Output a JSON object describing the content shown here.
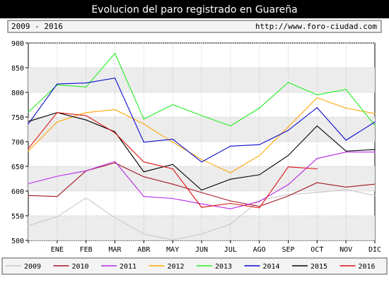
{
  "header": {
    "title": "Evolucion del paro registrado en Guareña",
    "range": "2009 - 2016",
    "url": "http://www.foro-ciudad.com"
  },
  "chart_data": {
    "type": "line",
    "title": "Evolucion del paro registrado en Guareña",
    "xlabel": "",
    "ylabel": "",
    "categories": [
      "",
      "ENE",
      "FEB",
      "MAR",
      "ABR",
      "MAY",
      "JUN",
      "JUL",
      "AGO",
      "SEP",
      "OCT",
      "NOV",
      "DIC"
    ],
    "ylim": [
      500,
      900
    ],
    "yticks": [
      500,
      550,
      600,
      650,
      700,
      750,
      800,
      850,
      900
    ],
    "grid": true,
    "legend_position": "bottom",
    "series": [
      {
        "name": "2009",
        "color": "#c8c8c8",
        "values": [
          530,
          548,
          586,
          546,
          513,
          501,
          513,
          533,
          581,
          593,
          597,
          603,
          591
        ]
      },
      {
        "name": "2010",
        "color": "#a0171e",
        "values": [
          591,
          589,
          641,
          657,
          629,
          614,
          597,
          580,
          569,
          590,
          617,
          608,
          614
        ]
      },
      {
        "name": "2011",
        "color": "#b928e8",
        "values": [
          615,
          630,
          641,
          660,
          589,
          585,
          574,
          564,
          579,
          613,
          666,
          679,
          679
        ]
      },
      {
        "name": "2012",
        "color": "#ffa500",
        "values": [
          681,
          740,
          759,
          765,
          736,
          699,
          664,
          637,
          672,
          730,
          789,
          768,
          757
        ]
      },
      {
        "name": "2013",
        "color": "#22ee22",
        "values": [
          760,
          815,
          811,
          879,
          746,
          775,
          753,
          732,
          768,
          820,
          795,
          806,
          733
        ]
      },
      {
        "name": "2014",
        "color": "#0a0ad0",
        "values": [
          736,
          817,
          819,
          829,
          699,
          705,
          659,
          691,
          694,
          723,
          769,
          703,
          740
        ]
      },
      {
        "name": "2015",
        "color": "#000000",
        "values": [
          741,
          759,
          744,
          720,
          639,
          654,
          602,
          624,
          633,
          672,
          732,
          681,
          684
        ]
      },
      {
        "name": "2016",
        "color": "#dd1111",
        "values": [
          686,
          759,
          753,
          718,
          659,
          645,
          567,
          575,
          566,
          649,
          645,
          null,
          null
        ]
      }
    ]
  }
}
